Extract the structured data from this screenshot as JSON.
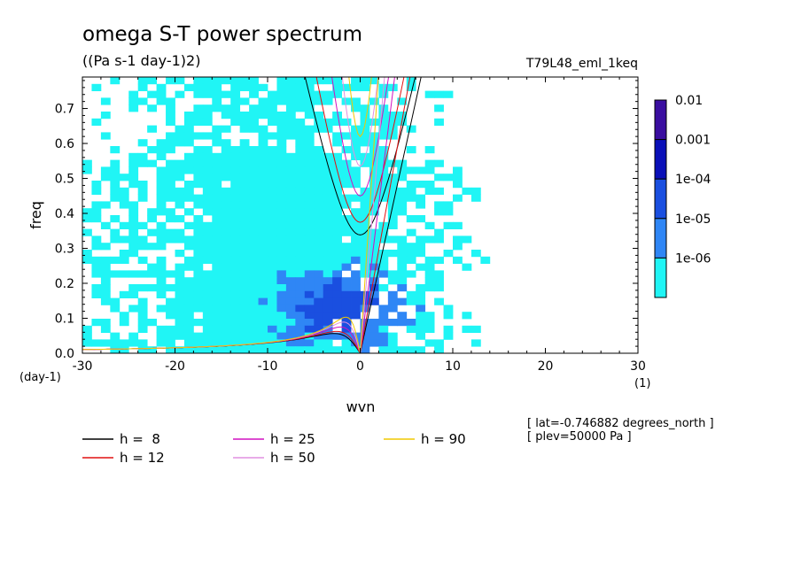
{
  "chart_data": {
    "type": "heatmap",
    "title": "omega S-T power spectrum",
    "subtitle": "((Pa s-1 day-1)2)",
    "run_label": "T79L48_eml_1keq",
    "xlabel": "wvn",
    "ylabel": "freq",
    "x_unit": "(1)",
    "y_unit": "(day-1)",
    "xlim": [
      -30,
      30
    ],
    "ylim": [
      0,
      0.79
    ],
    "x_ticks": [
      -30,
      -20,
      -10,
      0,
      10,
      20,
      30
    ],
    "x_tick_labels": [
      "-30",
      "-20",
      "-10",
      "0",
      "10",
      "20",
      "30"
    ],
    "y_ticks": [
      0,
      0.1,
      0.2,
      0.3,
      0.4,
      0.5,
      0.6,
      0.7
    ],
    "y_tick_labels": [
      "0.0",
      "0.1",
      "0.2",
      "0.3",
      "0.4",
      "0.5",
      "0.6",
      "0.7"
    ],
    "colorbar": {
      "labels": [
        "0.01",
        "0.001",
        "1e-04",
        "1e-05",
        "1e-06"
      ],
      "colors": [
        "#3a0ea0",
        "#0a10b8",
        "#1a4fe0",
        "#2f86f5",
        "#20f5f5"
      ]
    },
    "dispersion_curves": [
      {
        "label": "h =  8",
        "h": 8,
        "color": "#000000"
      },
      {
        "label": "h = 12",
        "h": 12,
        "color": "#e01010"
      },
      {
        "label": "h = 25",
        "h": 25,
        "color": "#d010c0"
      },
      {
        "label": "h = 50",
        "h": 50,
        "color": "#e090e0"
      },
      {
        "label": "h = 90",
        "h": 90,
        "color": "#f0c800"
      }
    ],
    "annotations": [
      "[ lat=-0.746882 degrees_north ]",
      "[ plev=50000 Pa ]"
    ]
  }
}
